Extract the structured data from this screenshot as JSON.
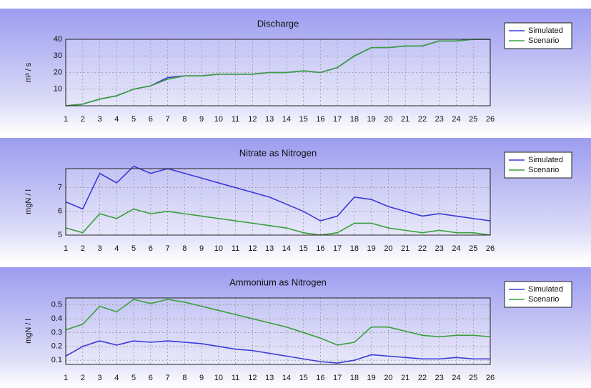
{
  "chart_data": [
    {
      "type": "line",
      "title": "Discharge",
      "y_label": "m³ / s",
      "x": [
        1,
        2,
        3,
        4,
        5,
        6,
        7,
        8,
        9,
        10,
        11,
        12,
        13,
        14,
        15,
        16,
        17,
        18,
        19,
        20,
        21,
        22,
        23,
        24,
        25,
        26
      ],
      "xlim": [
        1,
        26
      ],
      "xticks": [
        1,
        2,
        3,
        4,
        5,
        6,
        7,
        8,
        9,
        10,
        11,
        12,
        13,
        14,
        15,
        16,
        17,
        18,
        19,
        20,
        21,
        22,
        23,
        24,
        25,
        26
      ],
      "ylim": [
        0,
        40
      ],
      "yticks": [
        10,
        20,
        30,
        40
      ],
      "grid": true,
      "legend": "right",
      "series": [
        {
          "name": "Simulated",
          "color": "#3a3ad8",
          "values": [
            0,
            1,
            4,
            6,
            10,
            12,
            17,
            18,
            18,
            19,
            19,
            19,
            20,
            20,
            21,
            20,
            23,
            30,
            35,
            35,
            36,
            36,
            39,
            39,
            40,
            40
          ]
        },
        {
          "name": "Scenario",
          "color": "#3aa03a",
          "values": [
            0,
            1,
            4,
            6,
            10,
            12,
            16,
            18,
            18,
            19,
            19,
            19,
            20,
            20,
            21,
            20,
            23,
            30,
            35,
            35,
            36,
            36,
            39,
            39,
            40,
            40
          ]
        }
      ]
    },
    {
      "type": "line",
      "title": "Nitrate as Nitrogen",
      "y_label": "mgN / l",
      "x": [
        1,
        2,
        3,
        4,
        5,
        6,
        7,
        8,
        9,
        10,
        11,
        12,
        13,
        14,
        15,
        16,
        17,
        18,
        19,
        20,
        21,
        22,
        23,
        24,
        25,
        26
      ],
      "xlim": [
        1,
        26
      ],
      "xticks": [
        1,
        2,
        3,
        4,
        5,
        6,
        7,
        8,
        9,
        10,
        11,
        12,
        13,
        14,
        15,
        16,
        17,
        18,
        19,
        20,
        21,
        22,
        23,
        24,
        25,
        26
      ],
      "ylim": [
        5,
        7.8
      ],
      "yticks": [
        5,
        6,
        7
      ],
      "grid": true,
      "legend": "right",
      "series": [
        {
          "name": "Simulated",
          "color": "#3a3ad8",
          "values": [
            6.4,
            6.1,
            7.6,
            7.2,
            7.9,
            7.6,
            7.8,
            7.6,
            7.4,
            7.2,
            7.0,
            6.8,
            6.6,
            6.3,
            6.0,
            5.6,
            5.8,
            6.6,
            6.5,
            6.2,
            6.0,
            5.8,
            5.9,
            5.8,
            5.7,
            5.6
          ]
        },
        {
          "name": "Scenario",
          "color": "#3aa03a",
          "values": [
            5.3,
            5.1,
            5.9,
            5.7,
            6.1,
            5.9,
            6.0,
            5.9,
            5.8,
            5.7,
            5.6,
            5.5,
            5.4,
            5.3,
            5.1,
            5.0,
            5.1,
            5.5,
            5.5,
            5.3,
            5.2,
            5.1,
            5.2,
            5.1,
            5.1,
            5.0
          ]
        }
      ]
    },
    {
      "type": "line",
      "title": "Ammonium as Nitrogen",
      "y_label": "mgN / l",
      "x": [
        1,
        2,
        3,
        4,
        5,
        6,
        7,
        8,
        9,
        10,
        11,
        12,
        13,
        14,
        15,
        16,
        17,
        18,
        19,
        20,
        21,
        22,
        23,
        24,
        25,
        26
      ],
      "xlim": [
        1,
        26
      ],
      "xticks": [
        1,
        2,
        3,
        4,
        5,
        6,
        7,
        8,
        9,
        10,
        11,
        12,
        13,
        14,
        15,
        16,
        17,
        18,
        19,
        20,
        21,
        22,
        23,
        24,
        25,
        26
      ],
      "ylim": [
        0.07,
        0.55
      ],
      "yticks": [
        0.1,
        0.2,
        0.3,
        0.4,
        0.5
      ],
      "grid": true,
      "legend": "right",
      "series": [
        {
          "name": "Simulated",
          "color": "#3a3ad8",
          "values": [
            0.13,
            0.2,
            0.24,
            0.21,
            0.24,
            0.23,
            0.24,
            0.23,
            0.22,
            0.2,
            0.18,
            0.17,
            0.15,
            0.13,
            0.11,
            0.09,
            0.08,
            0.1,
            0.14,
            0.13,
            0.12,
            0.11,
            0.11,
            0.12,
            0.11,
            0.11
          ]
        },
        {
          "name": "Scenario",
          "color": "#3aa03a",
          "values": [
            0.32,
            0.36,
            0.49,
            0.45,
            0.54,
            0.51,
            0.54,
            0.52,
            0.49,
            0.46,
            0.43,
            0.4,
            0.37,
            0.34,
            0.3,
            0.26,
            0.21,
            0.23,
            0.34,
            0.34,
            0.31,
            0.28,
            0.27,
            0.28,
            0.28,
            0.27
          ]
        }
      ]
    }
  ]
}
